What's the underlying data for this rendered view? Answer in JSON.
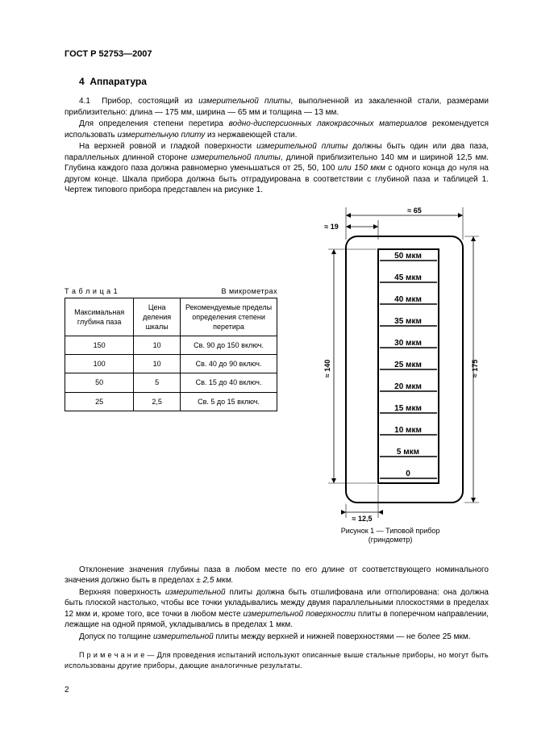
{
  "header": "ГОСТ Р 52753—2007",
  "section": {
    "num": "4",
    "title": "Аппаратура"
  },
  "paras": {
    "p1a": "4.1  Прибор, состоящий из ",
    "p1b": "измерительной плиты",
    "p1c": ", выполненной из закаленной стали, размерами приблизительно: длина — 175 мм, ширина — 65 мм и толщина — 13 мм.",
    "p2a": "Для определения степени перетира ",
    "p2b": "водно-дисперсионных лакокрасочных материалов",
    "p2c": " рекомендуется использовать ",
    "p2d": "измерительную плиту",
    "p2e": " из нержавеющей стали.",
    "p3a": "На верхней ровной и гладкой поверхности ",
    "p3b": "измерительной плиты",
    "p3c": " должны быть один или два паза, параллельных длинной стороне ",
    "p3d": "измерительной плиты",
    "p3e": ", длиной приблизительно 140 мм и шириной 12,5 мм. Глубина каждого паза должна равномерно уменьшаться от 25, 50, 100 ",
    "p3f": "или 150 мкм",
    "p3g": " с одного конца до нуля на другом конце. Шкала прибора должна быть отградуирована в соответствии с глубиной паза и таблицей 1. Чертеж типового прибора представлен на рисунке 1.",
    "p4a": "Отклонение значения глубины паза в любом месте по его длине от соответствующего номинального значения должно быть в пределах ",
    "p4b": "± 2,5 мкм.",
    "p5a": "Верхняя поверхность ",
    "p5b": "измерительной",
    "p5c": " плиты должна быть отшлифована или отполирована: она должна быть плоской настолько, чтобы все точки укладывались между двумя параллельными плоскостями в пределах 12 мкм и, кроме того, все точки в любом месте ",
    "p5d": "измерительной поверхности",
    "p5e": " плиты в поперечном направлении, лежащие на одной прямой, укладывались в пределах 1 мкм.",
    "p6a": "Допуск по толщине ",
    "p6b": "измерительной",
    "p6c": " плиты между верхней и нижней поверхностями — не более 25 мкм."
  },
  "table": {
    "label_left": "Т а б л и ц а  1",
    "label_right": "В микрометрах",
    "headers": [
      "Максимальная глубина паза",
      "Цена деления шкалы",
      "Рекомендуемые пределы определения степени перетира"
    ],
    "rows": [
      [
        "150",
        "10",
        "Св. 90 до 150 включ."
      ],
      [
        "100",
        "10",
        "Св. 40 до 90 включ."
      ],
      [
        "50",
        "5",
        "Св. 15 до 40 включ."
      ],
      [
        "25",
        "2,5",
        "Св. 5 до 15 включ."
      ]
    ]
  },
  "figure": {
    "dims": {
      "top_width": "≈ 65",
      "top_offset": "≈ 19",
      "left_height": "≈ 140",
      "right_height": "≈ 175",
      "bottom_width": "≈ 12,5"
    },
    "scale": [
      "50 мкм",
      "45 мкм",
      "40 мкм",
      "35 мкм",
      "30 мкм",
      "25 мкм",
      "20 мкм",
      "15 мкм",
      "10 мкм",
      "5 мкм",
      "0"
    ],
    "caption_line1": "Рисунок 1 — Типовой прибор",
    "caption_line2": "(гриндометр)"
  },
  "note": "П р и м е ч а н и е — Для проведения испытаний используют описанные выше стальные приборы, но могут быть использованы другие приборы, дающие аналогичные результаты.",
  "page_number": "2"
}
